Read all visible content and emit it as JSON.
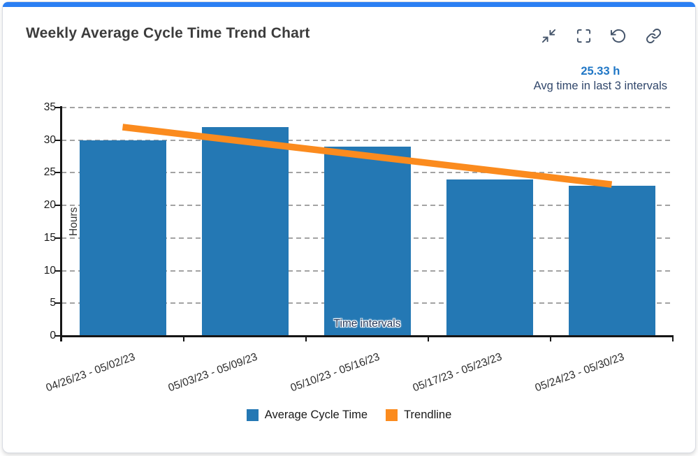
{
  "header": {
    "title": "Weekly Average Cycle Time Trend Chart",
    "icons": [
      "collapse-icon",
      "fullscreen-icon",
      "reset-icon",
      "link-icon"
    ]
  },
  "stat": {
    "value": "25.33 h",
    "caption": "Avg time in last 3 intervals"
  },
  "colors": {
    "accent": "#2b7ff3",
    "bar": "#2478b4",
    "trendline": "#fb8b1e",
    "stat_value": "#2077c6",
    "stat_caption": "#31476b",
    "icon": "#44546a",
    "axis": "#161616",
    "grid": "#a3a3a3"
  },
  "chart_data": {
    "type": "bar",
    "title": "Weekly Average Cycle Time Trend Chart",
    "categories": [
      "04/26/23 - 05/02/23",
      "05/03/23 - 05/09/23",
      "05/10/23 - 05/16/23",
      "05/17/23 - 05/23/23",
      "05/24/23 - 05/30/23"
    ],
    "series": [
      {
        "name": "Average Cycle Time",
        "type": "bar",
        "color": "#2478b4",
        "values": [
          30,
          32,
          29,
          24,
          23
        ]
      },
      {
        "name": "Trendline",
        "type": "line",
        "color": "#fb8b1e",
        "values": [
          32.0,
          29.8,
          27.6,
          25.4,
          23.2
        ]
      }
    ],
    "xlabel": "Time intervals",
    "ylabel": "Hours",
    "ylim": [
      0,
      35
    ],
    "yticks": [
      0,
      5,
      10,
      15,
      20,
      25,
      30,
      35
    ],
    "grid": "horizontal-dashed",
    "legend_position": "bottom",
    "annotation": {
      "value": "25.33 h",
      "caption": "Avg time in last 3 intervals"
    }
  }
}
